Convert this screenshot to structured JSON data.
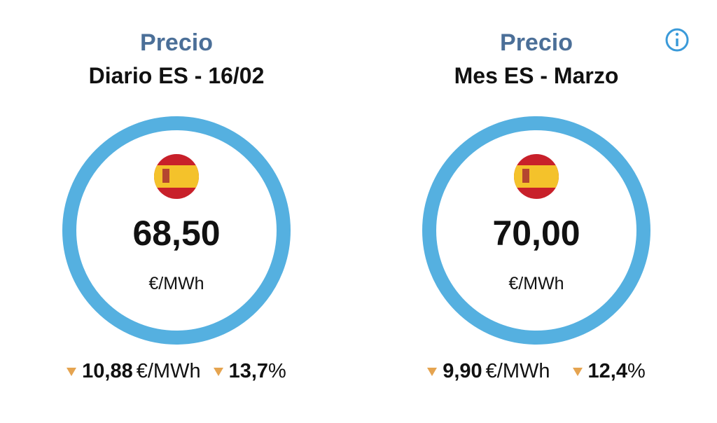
{
  "cards": [
    {
      "label": "Precio",
      "subtitle": "Diario ES - 16/02",
      "value": "68,50",
      "unit": "€/MWh",
      "change_value": "10,88",
      "change_unit": "€/MWh",
      "change_percent": "13,7",
      "percent_sign": "%"
    },
    {
      "label": "Precio",
      "subtitle": "Mes ES - Marzo",
      "value": "70,00",
      "unit": "€/MWh",
      "change_value": "9,90",
      "change_unit": "€/MWh",
      "change_percent": "12,4",
      "percent_sign": "%"
    }
  ]
}
